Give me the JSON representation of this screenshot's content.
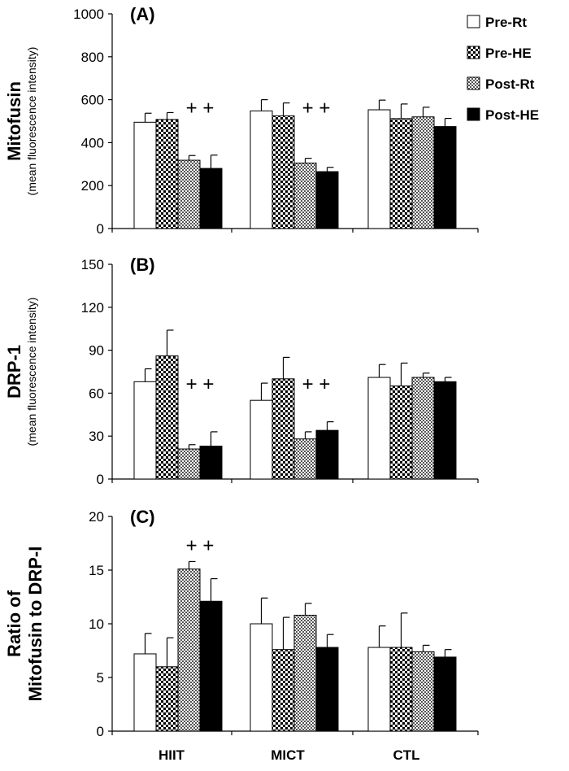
{
  "legend": [
    {
      "label": "Pre-Rt",
      "pattern": "white"
    },
    {
      "label": "Pre-HE",
      "pattern": "checker"
    },
    {
      "label": "Post-Rt",
      "pattern": "dots"
    },
    {
      "label": "Post-HE",
      "pattern": "black"
    }
  ],
  "chart_data": [
    {
      "type": "bar",
      "panel": "(A)",
      "ylabel_main": "Mitofusin",
      "ylabel_sub": "(mean fluorescence intensity)",
      "ylim": [
        0,
        1000
      ],
      "yticks": [
        0,
        200,
        400,
        600,
        800,
        1000
      ],
      "categories": [
        "HIIT",
        "MICT",
        "CTL"
      ],
      "series": [
        {
          "name": "Pre-Rt",
          "values": [
            495,
            548,
            553
          ],
          "errors": [
            42,
            52,
            45
          ]
        },
        {
          "name": "Pre-HE",
          "values": [
            508,
            525,
            512
          ],
          "errors": [
            32,
            60,
            68
          ]
        },
        {
          "name": "Post-Rt",
          "values": [
            318,
            305,
            520
          ],
          "errors": [
            22,
            22,
            45
          ]
        },
        {
          "name": "Post-HE",
          "values": [
            280,
            265,
            475
          ],
          "errors": [
            62,
            20,
            38
          ]
        }
      ],
      "annotations": [
        {
          "text": "+ +",
          "category": "HIIT"
        },
        {
          "text": "+ +",
          "category": "MICT"
        }
      ]
    },
    {
      "type": "bar",
      "panel": "(B)",
      "ylabel_main": "DRP-1",
      "ylabel_sub": "(mean fluorescence intensity)",
      "ylim": [
        0,
        150
      ],
      "yticks": [
        0,
        30,
        60,
        90,
        120,
        150
      ],
      "categories": [
        "HIIT",
        "MICT",
        "CTL"
      ],
      "series": [
        {
          "name": "Pre-Rt",
          "values": [
            68,
            55,
            71
          ],
          "errors": [
            9,
            12,
            9
          ]
        },
        {
          "name": "Pre-HE",
          "values": [
            86,
            70,
            65
          ],
          "errors": [
            18,
            15,
            16
          ]
        },
        {
          "name": "Post-Rt",
          "values": [
            21,
            28,
            71
          ],
          "errors": [
            3,
            5,
            3
          ]
        },
        {
          "name": "Post-HE",
          "values": [
            23,
            34,
            68
          ],
          "errors": [
            10,
            6,
            3
          ]
        }
      ],
      "annotations": [
        {
          "text": "+ +",
          "category": "HIIT"
        },
        {
          "text": "+ +",
          "category": "MICT"
        }
      ]
    },
    {
      "type": "bar",
      "panel": "(C)",
      "ylabel_main": "Ratio of",
      "ylabel_sub": "Mitofusin to DRP-I",
      "ylim": [
        0,
        20
      ],
      "yticks": [
        0,
        5,
        10,
        15,
        20
      ],
      "categories": [
        "HIIT",
        "MICT",
        "CTL"
      ],
      "series": [
        {
          "name": "Pre-Rt",
          "values": [
            7.2,
            10.0,
            7.8
          ],
          "errors": [
            1.9,
            2.4,
            2.0
          ]
        },
        {
          "name": "Pre-HE",
          "values": [
            6.0,
            7.6,
            7.8
          ],
          "errors": [
            2.7,
            3.0,
            3.2
          ]
        },
        {
          "name": "Post-Rt",
          "values": [
            15.1,
            10.8,
            7.4
          ],
          "errors": [
            0.7,
            1.1,
            0.6
          ]
        },
        {
          "name": "Post-HE",
          "values": [
            12.1,
            7.8,
            6.9
          ],
          "errors": [
            2.1,
            1.2,
            0.7
          ]
        }
      ],
      "annotations": [
        {
          "text": "+ +",
          "category": "HIIT"
        }
      ]
    }
  ]
}
